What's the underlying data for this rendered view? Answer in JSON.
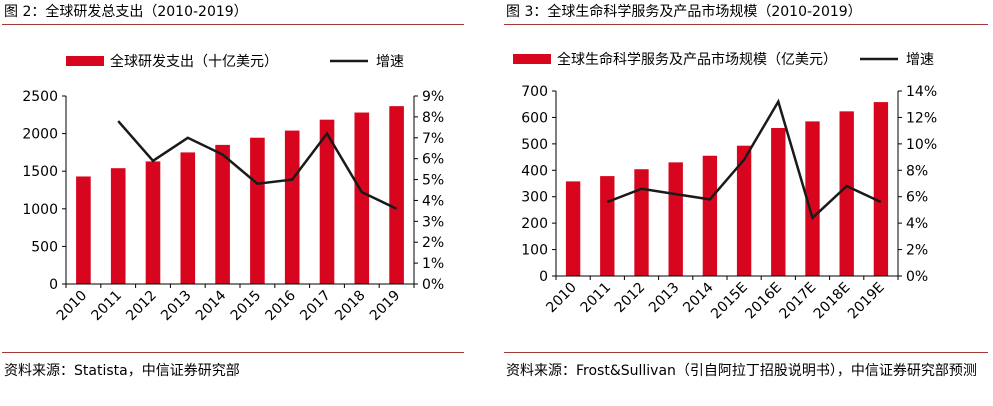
{
  "figures": [
    {
      "title": "图 2：全球研发总支出（2010-2019）",
      "source": "资料来源：Statista，中信证券研究部"
    },
    {
      "title": "图 3：全球生命科学服务及产品市场规模（2010-2019）",
      "source": "资料来源：Frost&Sullivan（引自阿拉丁招股说明书），中信证券研究部预测"
    }
  ],
  "chart_data": [
    {
      "type": "bar",
      "title": "全球研发总支出（2010-2019）",
      "categories": [
        "2010",
        "2011",
        "2012",
        "2013",
        "2014",
        "2015",
        "2016",
        "2017",
        "2018",
        "2019"
      ],
      "series": [
        {
          "name": "全球研发支出（十亿美元）",
          "type": "bar",
          "axis": "left",
          "values": [
            1430,
            1540,
            1630,
            1750,
            1850,
            1945,
            2040,
            2185,
            2280,
            2365
          ]
        },
        {
          "name": "增速",
          "type": "line",
          "axis": "right",
          "values": [
            null,
            7.8,
            5.9,
            7.0,
            6.2,
            4.8,
            5.0,
            7.2,
            4.4,
            3.6
          ]
        }
      ],
      "ylim": [
        0,
        2500
      ],
      "yticks": [
        "0",
        "500",
        "1000",
        "1500",
        "2000",
        "2500"
      ],
      "y2lim": [
        0,
        9
      ],
      "y2ticks": [
        "0%",
        "1%",
        "2%",
        "3%",
        "4%",
        "5%",
        "6%",
        "7%",
        "8%",
        "9%"
      ],
      "legend": "top"
    },
    {
      "type": "bar",
      "title": "全球生命科学服务及产品市场规模（2010-2019）",
      "categories": [
        "2010",
        "2011",
        "2012",
        "2013",
        "2014",
        "2015E",
        "2016E",
        "2017E",
        "2018E",
        "2019E"
      ],
      "series": [
        {
          "name": "全球生命科学服务及产品市场规模（亿美元）",
          "type": "bar",
          "axis": "left",
          "values": [
            358,
            378,
            404,
            430,
            455,
            493,
            560,
            585,
            623,
            658
          ]
        },
        {
          "name": "增速",
          "type": "line",
          "axis": "right",
          "values": [
            null,
            5.6,
            6.6,
            6.2,
            5.8,
            8.8,
            13.2,
            4.4,
            6.8,
            5.6
          ]
        }
      ],
      "ylim": [
        0,
        700
      ],
      "yticks": [
        "0",
        "100",
        "200",
        "300",
        "400",
        "500",
        "600",
        "700"
      ],
      "y2lim": [
        0,
        14
      ],
      "y2ticks": [
        "0%",
        "2%",
        "4%",
        "6%",
        "8%",
        "10%",
        "12%",
        "14%"
      ],
      "legend": "top"
    }
  ],
  "colors": {
    "bar": "#d7061e",
    "line": "#1a1a1a",
    "rule": "#a33a3a"
  }
}
